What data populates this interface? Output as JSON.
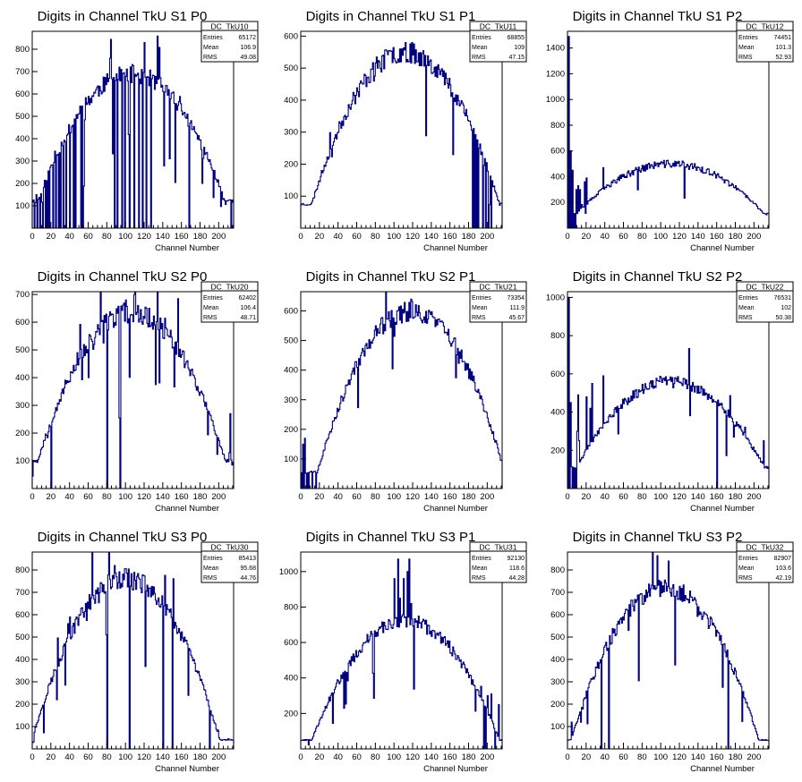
{
  "colors": {
    "line": "#000080",
    "frame": "#000000",
    "background": "#ffffff"
  },
  "chart_data": [
    {
      "type": "histogram",
      "title": "Digits in Channel TkU S1 P0",
      "xlabel": "Channel Number",
      "xlim": [
        0,
        216
      ],
      "ylim": [
        0,
        880
      ],
      "xticks": [
        "0",
        "20",
        "40",
        "60",
        "80",
        "100",
        "120",
        "140",
        "160",
        "180",
        "200"
      ],
      "yticks": [
        "100",
        "200",
        "300",
        "400",
        "500",
        "600",
        "700",
        "800"
      ],
      "stats": {
        "name": "DC_TkU10",
        "entries": "65172",
        "mean": "106.9",
        "rms": "49.08"
      },
      "shape": {
        "peak_channel": 106,
        "peak_value": 690,
        "edge_value": 120,
        "glitch": 0.12,
        "seed": 11
      },
      "spikes": [
        [
          4,
          150
        ],
        [
          120,
          830
        ],
        [
          182,
          200
        ]
      ],
      "dips": [
        2,
        5,
        8,
        11,
        14,
        16,
        18,
        22,
        25,
        28,
        30,
        33,
        36,
        40,
        44,
        46,
        52,
        54,
        88,
        91,
        96,
        99,
        104,
        109,
        114,
        118,
        122,
        127,
        168,
        213
      ]
    },
    {
      "type": "histogram",
      "title": "Digits in Channel TkU S1 P1",
      "xlabel": "Channel Number",
      "xlim": [
        0,
        216
      ],
      "ylim": [
        0,
        615
      ],
      "xticks": [
        "0",
        "20",
        "40",
        "60",
        "80",
        "100",
        "120",
        "140",
        "160",
        "180",
        "200"
      ],
      "yticks": [
        "100",
        "200",
        "300",
        "400",
        "500",
        "600"
      ],
      "stats": {
        "name": "DC_TkU11",
        "entries": "68855",
        "mean": "109",
        "rms": "47.15"
      },
      "shape": {
        "peak_channel": 112,
        "peak_value": 550,
        "edge_value": 75,
        "glitch": 0.04,
        "seed": 23
      },
      "spikes": [
        [
          112,
          580
        ]
      ],
      "dips": [
        184,
        186,
        188,
        190,
        195,
        198,
        201,
        204
      ]
    },
    {
      "type": "histogram",
      "title": "Digits in Channel TkU S1 P2",
      "xlabel": "Channel Number",
      "xlim": [
        0,
        216
      ],
      "ylim": [
        0,
        1530
      ],
      "xticks": [
        "0",
        "20",
        "40",
        "60",
        "80",
        "100",
        "120",
        "140",
        "160",
        "180",
        "200"
      ],
      "yticks": [
        "200",
        "400",
        "600",
        "800",
        "1000",
        "1200",
        "1400"
      ],
      "stats": {
        "name": "DC_TkU12",
        "entries": "74451",
        "mean": "101.3",
        "rms": "52.93"
      },
      "shape": {
        "peak_channel": 110,
        "peak_value": 500,
        "edge_value": 110,
        "glitch": 0.04,
        "seed": 37
      },
      "spikes": [
        [
          1,
          1490
        ],
        [
          3,
          600
        ],
        [
          5,
          450
        ],
        [
          9,
          300
        ],
        [
          11,
          330
        ],
        [
          13,
          300
        ],
        [
          18,
          360
        ],
        [
          20,
          390
        ],
        [
          38,
          470
        ]
      ],
      "dips": [
        0,
        2,
        4,
        6,
        8
      ]
    },
    {
      "type": "histogram",
      "title": "Digits in Channel TkU S2 P0",
      "xlabel": "Channel Number",
      "xlim": [
        0,
        216
      ],
      "ylim": [
        0,
        710
      ],
      "xticks": [
        "0",
        "20",
        "40",
        "60",
        "80",
        "100",
        "120",
        "140",
        "160",
        "180",
        "200"
      ],
      "yticks": [
        "100",
        "200",
        "300",
        "400",
        "500",
        "600",
        "700"
      ],
      "stats": {
        "name": "DC_TkU20",
        "entries": "62402",
        "mean": "106.4",
        "rms": "48.71"
      },
      "shape": {
        "peak_channel": 106,
        "peak_value": 635,
        "edge_value": 100,
        "glitch": 0.1,
        "seed": 53
      },
      "spikes": [
        [
          48,
          490
        ],
        [
          60,
          400
        ],
        [
          66,
          520
        ],
        [
          100,
          680
        ],
        [
          212,
          270
        ]
      ],
      "dips": [
        20,
        80,
        94
      ]
    },
    {
      "type": "histogram",
      "title": "Digits in Channel TkU S2 P1",
      "xlabel": "Channel Number",
      "xlim": [
        0,
        216
      ],
      "ylim": [
        0,
        665
      ],
      "xticks": [
        "0",
        "20",
        "40",
        "60",
        "80",
        "100",
        "120",
        "140",
        "160",
        "180",
        "200"
      ],
      "yticks": [
        "100",
        "200",
        "300",
        "400",
        "500",
        "600"
      ],
      "stats": {
        "name": "DC_TkU21",
        "entries": "73354",
        "mean": "111.9",
        "rms": "45.67"
      },
      "shape": {
        "peak_channel": 118,
        "peak_value": 600,
        "edge_value": 55,
        "glitch": 0.04,
        "seed": 71
      },
      "spikes": [
        [
          2,
          150
        ],
        [
          4,
          170
        ],
        [
          118,
          640
        ]
      ],
      "dips": [
        1,
        3,
        6,
        8,
        12,
        16
      ]
    },
    {
      "type": "histogram",
      "title": "Digits in Channel TkU S2 P2",
      "xlabel": "Channel Number",
      "xlim": [
        0,
        216
      ],
      "ylim": [
        0,
        1030
      ],
      "xticks": [
        "0",
        "20",
        "40",
        "60",
        "80",
        "100",
        "120",
        "140",
        "160",
        "180",
        "200"
      ],
      "yticks": [
        "200",
        "400",
        "600",
        "800",
        "1000"
      ],
      "stats": {
        "name": "DC_TkU22",
        "entries": "76531",
        "mean": "102",
        "rms": "50.38"
      },
      "shape": {
        "peak_channel": 110,
        "peak_value": 560,
        "edge_value": 110,
        "glitch": 0.05,
        "seed": 89
      },
      "spikes": [
        [
          1,
          1000
        ],
        [
          3,
          450
        ],
        [
          10,
          300
        ],
        [
          11,
          490
        ],
        [
          12,
          250
        ],
        [
          20,
          480
        ],
        [
          24,
          420
        ],
        [
          26,
          550
        ],
        [
          38,
          590
        ],
        [
          210,
          250
        ]
      ],
      "dips": [
        0,
        2,
        5,
        7,
        9,
        160
      ]
    },
    {
      "type": "histogram",
      "title": "Digits in Channel TkU S3 P0",
      "xlabel": "Channel Number",
      "xlim": [
        0,
        216
      ],
      "ylim": [
        0,
        880
      ],
      "xticks": [
        "0",
        "20",
        "40",
        "60",
        "80",
        "100",
        "120",
        "140",
        "160",
        "180",
        "200"
      ],
      "yticks": [
        "100",
        "200",
        "300",
        "400",
        "500",
        "600",
        "700",
        "800"
      ],
      "stats": {
        "name": "DC_TkU30",
        "entries": "85413",
        "mean": "95.68",
        "rms": "44.76"
      },
      "shape": {
        "peak_channel": 100,
        "peak_value": 760,
        "edge_value": 40,
        "glitch": 0.1,
        "seed": 97
      },
      "spikes": [
        [
          38,
          560
        ],
        [
          40,
          590
        ],
        [
          70,
          720
        ],
        [
          88,
          820
        ]
      ],
      "dips": [
        80,
        104,
        140,
        150,
        190
      ]
    },
    {
      "type": "histogram",
      "title": "Digits in Channel TkU S3 P1",
      "xlabel": "Channel Number",
      "xlim": [
        0,
        216
      ],
      "ylim": [
        0,
        1110
      ],
      "xticks": [
        "0",
        "20",
        "40",
        "60",
        "80",
        "100",
        "120",
        "140",
        "160",
        "180",
        "200"
      ],
      "yticks": [
        "200",
        "400",
        "600",
        "800",
        "1000"
      ],
      "stats": {
        "name": "DC_TkU31",
        "entries": "92130",
        "mean": "118.6",
        "rms": "44.28"
      },
      "shape": {
        "peak_channel": 112,
        "peak_value": 720,
        "edge_value": 50,
        "glitch": 0.04,
        "seed": 113
      },
      "spikes": [
        [
          100,
          960
        ],
        [
          104,
          1070
        ],
        [
          106,
          850
        ],
        [
          110,
          960
        ],
        [
          114,
          1000
        ],
        [
          116,
          1070
        ],
        [
          118,
          820
        ],
        [
          200,
          300
        ],
        [
          204,
          310
        ],
        [
          212,
          250
        ]
      ],
      "dips": [
        196,
        198,
        208
      ]
    },
    {
      "type": "histogram",
      "title": "Digits in Channel TkU S3 P2",
      "xlabel": "Channel Number",
      "xlim": [
        0,
        216
      ],
      "ylim": [
        0,
        880
      ],
      "xticks": [
        "0",
        "20",
        "40",
        "60",
        "80",
        "100",
        "120",
        "140",
        "160",
        "180",
        "200"
      ],
      "yticks": [
        "100",
        "200",
        "300",
        "400",
        "500",
        "600",
        "700",
        "800"
      ],
      "stats": {
        "name": "DC_TkU32",
        "entries": "82907",
        "mean": "103.6",
        "rms": "42.19"
      },
      "shape": {
        "peak_channel": 104,
        "peak_value": 720,
        "edge_value": 40,
        "glitch": 0.05,
        "seed": 131
      },
      "spikes": [
        [
          108,
          840
        ],
        [
          4,
          120
        ]
      ],
      "dips": [
        36,
        44,
        172
      ]
    }
  ]
}
